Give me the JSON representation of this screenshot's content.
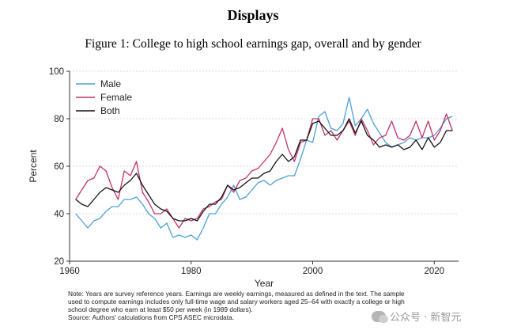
{
  "page": {
    "heading": "Displays",
    "figure_title": "Figure 1: College to high school earnings gap, overall and by gender",
    "notes": [
      "Note: Years are survey reference years. Earnings are weekly earnings, measured as defined in the text. The sample",
      "used to compute earnings includes only full-time wage and salary workers aged 25–64 with exactly a college or high",
      "school degree who earn at least $50 per week (in 1989 dollars).",
      "Source: Authors' calculations from CPS ASEC microdata."
    ],
    "watermark": "公众号 · 新智元"
  },
  "chart_data": {
    "type": "line",
    "title": "",
    "xlabel": "Year",
    "ylabel": "Percent",
    "xlim": [
      1960,
      2024
    ],
    "ylim": [
      20,
      100
    ],
    "xticks": [
      1960,
      1980,
      2000,
      2020
    ],
    "yticks": [
      20,
      40,
      60,
      80,
      100
    ],
    "grid": "horizontal dashed",
    "legend_position": "top-left",
    "x": [
      1961,
      1962,
      1963,
      1964,
      1965,
      1966,
      1967,
      1968,
      1969,
      1970,
      1971,
      1972,
      1973,
      1974,
      1975,
      1976,
      1977,
      1978,
      1979,
      1980,
      1981,
      1982,
      1983,
      1984,
      1985,
      1986,
      1987,
      1988,
      1989,
      1990,
      1991,
      1992,
      1993,
      1994,
      1995,
      1996,
      1997,
      1998,
      1999,
      2000,
      2001,
      2002,
      2003,
      2004,
      2005,
      2006,
      2007,
      2008,
      2009,
      2010,
      2011,
      2012,
      2013,
      2014,
      2015,
      2016,
      2017,
      2018,
      2019,
      2020,
      2021,
      2022,
      2023
    ],
    "series": [
      {
        "name": "Male",
        "color": "#4a9fd8",
        "values": [
          40,
          37,
          34,
          37,
          38,
          41,
          43,
          43,
          46,
          46,
          47,
          44,
          40,
          38,
          34,
          36,
          30,
          31,
          30,
          31,
          29,
          34,
          40,
          40,
          44,
          47,
          52,
          46,
          47,
          50,
          53,
          54,
          52,
          54,
          55,
          56,
          56,
          63,
          71,
          70,
          81,
          83,
          76,
          75,
          78,
          89,
          77,
          80,
          84,
          78,
          74,
          70,
          68,
          69,
          70,
          72,
          71,
          72,
          72,
          73,
          76,
          80,
          81
        ]
      },
      {
        "name": "Female",
        "color": "#c2306a",
        "values": [
          46,
          50,
          54,
          55,
          60,
          58,
          51,
          46,
          58,
          56,
          62,
          49,
          45,
          40,
          40,
          42,
          38,
          34,
          38,
          37,
          38,
          42,
          43,
          45,
          46,
          52,
          49,
          54,
          55,
          58,
          59,
          62,
          65,
          70,
          76,
          67,
          62,
          70,
          71,
          80,
          80,
          73,
          75,
          71,
          75,
          79,
          73,
          80,
          75,
          69,
          72,
          73,
          79,
          72,
          71,
          73,
          79,
          72,
          79,
          71,
          75,
          82,
          75
        ]
      },
      {
        "name": "Both",
        "color": "#111111",
        "values": [
          46,
          44,
          43,
          46,
          49,
          51,
          50,
          49,
          52,
          54,
          57,
          52,
          48,
          44,
          42,
          41,
          38,
          37,
          37,
          38,
          37,
          41,
          44,
          44,
          47,
          52,
          50,
          51,
          53,
          55,
          55,
          57,
          58,
          62,
          65,
          62,
          64,
          71,
          71,
          78,
          79,
          76,
          73,
          73,
          75,
          80,
          74,
          79,
          73,
          71,
          68,
          69,
          68,
          69,
          67,
          68,
          71,
          67,
          72,
          68,
          70,
          75,
          75
        ]
      }
    ]
  }
}
